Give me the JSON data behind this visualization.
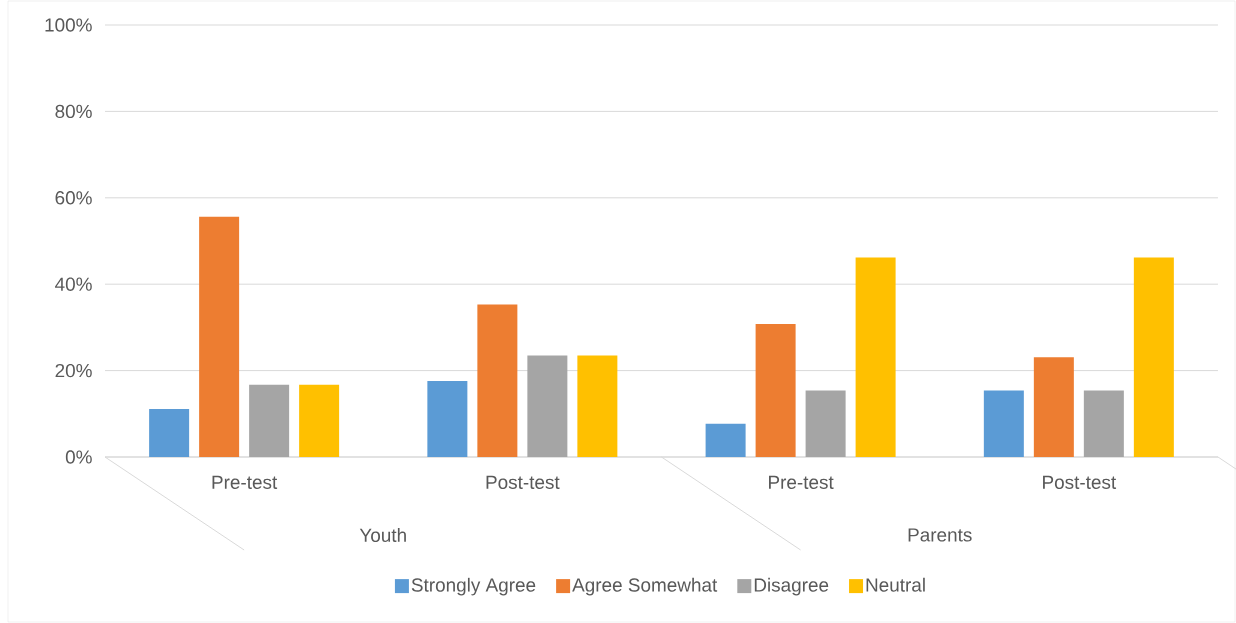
{
  "chart_data": {
    "type": "bar",
    "categories": [
      "Pre-test",
      "Post-test",
      "Pre-test",
      "Post-test"
    ],
    "series": [
      {
        "name": "Strongly Agree",
        "color": "#5b9bd5",
        "values": [
          11.1,
          17.6,
          7.7,
          15.4
        ]
      },
      {
        "name": "Agree Somewhat",
        "color": "#ed7d31",
        "values": [
          55.6,
          35.3,
          30.8,
          23.1
        ]
      },
      {
        "name": "Disagree",
        "color": "#a5a5a5",
        "values": [
          16.7,
          23.5,
          15.4,
          15.4
        ]
      },
      {
        "name": "Neutral",
        "color": "#ffc000",
        "values": [
          16.7,
          23.5,
          46.2,
          46.2
        ]
      }
    ],
    "annotations": [
      "Youth",
      "Parents"
    ],
    "ylim": [
      0,
      100
    ],
    "yticks": [
      {
        "value": 0,
        "label": "0%"
      },
      {
        "value": 20,
        "label": "20%"
      },
      {
        "value": 40,
        "label": "40%"
      },
      {
        "value": 60,
        "label": "60%"
      },
      {
        "value": 80,
        "label": "80%"
      },
      {
        "value": 100,
        "label": "100%"
      }
    ],
    "grid": "y",
    "legend": "bottom"
  }
}
